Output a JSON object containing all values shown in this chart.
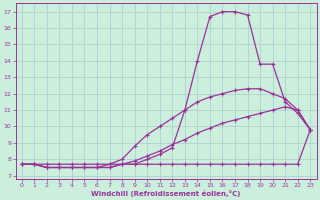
{
  "xlabel": "Windchill (Refroidissement éolien,°C)",
  "bg_color": "#cceedd",
  "grid_color": "#aacccc",
  "line_color": "#993399",
  "xlim": [
    -0.5,
    23.5
  ],
  "ylim": [
    6.8,
    17.5
  ],
  "yticks": [
    7,
    8,
    9,
    10,
    11,
    12,
    13,
    14,
    15,
    16,
    17
  ],
  "xticks": [
    0,
    1,
    2,
    3,
    4,
    5,
    6,
    7,
    8,
    9,
    10,
    11,
    12,
    13,
    14,
    15,
    16,
    17,
    18,
    19,
    20,
    21,
    22,
    23
  ],
  "curves": [
    {
      "x": [
        0,
        1,
        2,
        3,
        4,
        5,
        6,
        7,
        8,
        9,
        10,
        11,
        12,
        13,
        14,
        15,
        16,
        17,
        18,
        19,
        20,
        21,
        22,
        23
      ],
      "y": [
        7.7,
        7.7,
        7.7,
        7.7,
        7.7,
        7.7,
        7.7,
        7.7,
        7.7,
        7.7,
        7.7,
        7.7,
        7.7,
        7.7,
        7.7,
        7.7,
        7.7,
        7.7,
        7.7,
        7.7,
        7.7,
        7.7,
        7.7,
        9.8
      ]
    },
    {
      "x": [
        0,
        1,
        2,
        3,
        4,
        5,
        6,
        7,
        8,
        9,
        10,
        11,
        12,
        13,
        14,
        15,
        16,
        17,
        18,
        19,
        20,
        21,
        22,
        23
      ],
      "y": [
        7.7,
        7.7,
        7.5,
        7.5,
        7.5,
        7.5,
        7.5,
        7.5,
        7.7,
        7.9,
        8.2,
        8.5,
        8.9,
        9.2,
        9.6,
        9.9,
        10.2,
        10.4,
        10.6,
        10.8,
        11.0,
        11.2,
        11.0,
        9.8
      ]
    },
    {
      "x": [
        0,
        1,
        2,
        3,
        4,
        5,
        6,
        7,
        8,
        9,
        10,
        11,
        12,
        13,
        14,
        15,
        16,
        17,
        18,
        19,
        20,
        21,
        22,
        23
      ],
      "y": [
        7.7,
        7.7,
        7.5,
        7.5,
        7.5,
        7.5,
        7.5,
        7.7,
        8.0,
        8.8,
        9.5,
        10.0,
        10.5,
        11.0,
        11.5,
        11.8,
        12.0,
        12.2,
        12.3,
        12.3,
        12.0,
        11.7,
        11.0,
        9.8
      ]
    },
    {
      "x": [
        0,
        1,
        2,
        3,
        4,
        5,
        6,
        7,
        8,
        9,
        10,
        11,
        12,
        13,
        14,
        15,
        16,
        17,
        18,
        19,
        20,
        21,
        22,
        23
      ],
      "y": [
        7.7,
        7.7,
        7.5,
        7.5,
        7.5,
        7.5,
        7.5,
        7.5,
        7.7,
        7.7,
        8.0,
        8.3,
        8.7,
        11.0,
        14.0,
        16.7,
        17.0,
        17.0,
        16.8,
        13.8,
        13.8,
        11.5,
        10.8,
        9.8
      ]
    }
  ]
}
